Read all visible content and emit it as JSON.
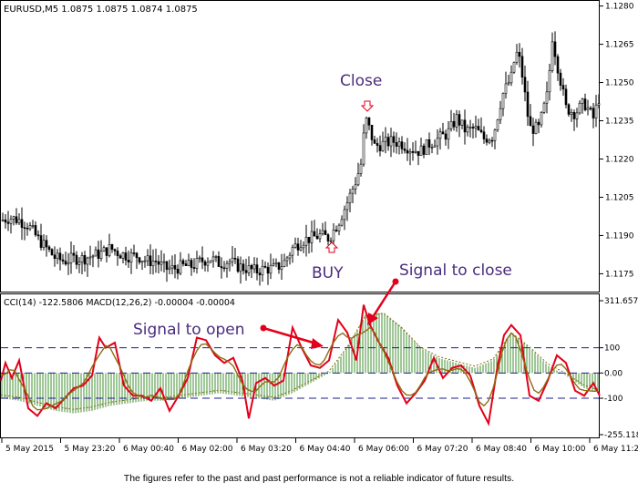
{
  "disclaimer": "The figures refer to the past and past performance is not a reliable indicator of future results.",
  "annotations": {
    "close": "Close",
    "buy": "BUY",
    "signal_open": "Signal to open",
    "signal_close": "Signal to close"
  },
  "chart_data": [
    {
      "type": "candlestick",
      "title": "EURUSD,M5  1.0875 1.0875 1.0874 1.0875",
      "y_ticks": [
        "1.1280",
        "1.1265",
        "1.1250",
        "1.1235",
        "1.1220",
        "1.1205",
        "1.1190",
        "1.1175"
      ],
      "ylim": [
        1.1168,
        1.1282
      ],
      "x_ticks": [
        "5 May 2015",
        "5 May 23:20",
        "6 May 00:40",
        "6 May 02:00",
        "6 May 03:20",
        "6 May 04:40",
        "6 May 06:00",
        "6 May 07:20",
        "6 May 08:40",
        "6 May 10:00",
        "6 May 11:20"
      ],
      "close_path": [
        [
          0,
          1.1196
        ],
        [
          10,
          1.1197
        ],
        [
          20,
          1.1196
        ],
        [
          30,
          1.1194
        ],
        [
          40,
          1.1189
        ],
        [
          50,
          1.1185
        ],
        [
          60,
          1.1181
        ],
        [
          70,
          1.118
        ],
        [
          80,
          1.1181
        ],
        [
          90,
          1.1181
        ],
        [
          100,
          1.1182
        ],
        [
          110,
          1.1183
        ],
        [
          120,
          1.1185
        ],
        [
          130,
          1.1183
        ],
        [
          140,
          1.1182
        ],
        [
          150,
          1.1182
        ],
        [
          160,
          1.118
        ],
        [
          170,
          1.118
        ],
        [
          180,
          1.1177
        ],
        [
          190,
          1.1177
        ],
        [
          200,
          1.1178
        ],
        [
          210,
          1.1178
        ],
        [
          220,
          1.118
        ],
        [
          230,
          1.1181
        ],
        [
          240,
          1.1179
        ],
        [
          250,
          1.118
        ],
        [
          260,
          1.1178
        ],
        [
          270,
          1.1177
        ],
        [
          280,
          1.1176
        ],
        [
          290,
          1.1177
        ],
        [
          300,
          1.1177
        ],
        [
          310,
          1.1179
        ],
        [
          320,
          1.1185
        ],
        [
          330,
          1.1188
        ],
        [
          340,
          1.1189
        ],
        [
          350,
          1.119
        ],
        [
          360,
          1.1189
        ],
        [
          370,
          1.1195
        ],
        [
          380,
          1.1203
        ],
        [
          390,
          1.1212
        ],
        [
          395,
          1.1218
        ],
        [
          400,
          1.1236
        ],
        [
          405,
          1.1231
        ],
        [
          410,
          1.1225
        ],
        [
          420,
          1.1226
        ],
        [
          430,
          1.1227
        ],
        [
          440,
          1.1226
        ],
        [
          450,
          1.1224
        ],
        [
          460,
          1.1223
        ],
        [
          470,
          1.1226
        ],
        [
          480,
          1.1228
        ],
        [
          490,
          1.123
        ],
        [
          500,
          1.1236
        ],
        [
          510,
          1.1231
        ],
        [
          520,
          1.1232
        ],
        [
          530,
          1.1228
        ],
        [
          540,
          1.1229
        ],
        [
          550,
          1.1245
        ],
        [
          560,
          1.1252
        ],
        [
          565,
          1.1262
        ],
        [
          570,
          1.1258
        ],
        [
          580,
          1.1232
        ],
        [
          590,
          1.1232
        ],
        [
          600,
          1.1246
        ],
        [
          605,
          1.1268
        ],
        [
          610,
          1.1258
        ],
        [
          620,
          1.124
        ],
        [
          630,
          1.1238
        ],
        [
          640,
          1.1242
        ],
        [
          650,
          1.1236
        ],
        [
          657,
          1.1245
        ]
      ]
    },
    {
      "type": "line",
      "title": "CCI(14) -122.5806  MACD(12,26,2) -0.00004 -0.00004",
      "y_ticks": [
        "311.6573",
        "100",
        "0.00",
        "-100",
        "-255.118"
      ],
      "ylim": [
        -255.118,
        311.6573
      ],
      "levels": [
        100,
        0,
        -100
      ],
      "series": [
        {
          "name": "CCI(14)",
          "values": [
            [
              0,
              -30
            ],
            [
              5,
              40
            ],
            [
              12,
              -20
            ],
            [
              20,
              50
            ],
            [
              30,
              -140
            ],
            [
              40,
              -170
            ],
            [
              50,
              -120
            ],
            [
              60,
              -140
            ],
            [
              70,
              -100
            ],
            [
              80,
              -60
            ],
            [
              90,
              -50
            ],
            [
              100,
              -10
            ],
            [
              108,
              140
            ],
            [
              115,
              100
            ],
            [
              125,
              120
            ],
            [
              135,
              -50
            ],
            [
              145,
              -90
            ],
            [
              155,
              -90
            ],
            [
              165,
              -110
            ],
            [
              175,
              -60
            ],
            [
              185,
              -150
            ],
            [
              195,
              -90
            ],
            [
              205,
              -20
            ],
            [
              215,
              140
            ],
            [
              225,
              130
            ],
            [
              235,
              70
            ],
            [
              245,
              40
            ],
            [
              255,
              60
            ],
            [
              265,
              -30
            ],
            [
              272,
              -180
            ],
            [
              280,
              -40
            ],
            [
              290,
              -20
            ],
            [
              300,
              -50
            ],
            [
              310,
              -30
            ],
            [
              320,
              180
            ],
            [
              330,
              100
            ],
            [
              340,
              30
            ],
            [
              350,
              20
            ],
            [
              360,
              50
            ],
            [
              370,
              210
            ],
            [
              380,
              160
            ],
            [
              390,
              50
            ],
            [
              398,
              270
            ],
            [
              405,
              190
            ],
            [
              415,
              120
            ],
            [
              425,
              60
            ],
            [
              435,
              -50
            ],
            [
              445,
              -120
            ],
            [
              455,
              -80
            ],
            [
              465,
              -30
            ],
            [
              475,
              60
            ],
            [
              485,
              -20
            ],
            [
              495,
              20
            ],
            [
              505,
              30
            ],
            [
              515,
              -10
            ],
            [
              525,
              -130
            ],
            [
              535,
              -200
            ],
            [
              545,
              30
            ],
            [
              552,
              150
            ],
            [
              560,
              190
            ],
            [
              570,
              150
            ],
            [
              580,
              -90
            ],
            [
              590,
              -110
            ],
            [
              600,
              -30
            ],
            [
              610,
              70
            ],
            [
              620,
              40
            ],
            [
              630,
              -70
            ],
            [
              640,
              -90
            ],
            [
              650,
              -40
            ],
            [
              657,
              -90
            ]
          ]
        },
        {
          "name": "MACD(12,26,2)",
          "values": [
            [
              0,
              -100
            ],
            [
              20,
              -110
            ],
            [
              40,
              -130
            ],
            [
              60,
              -150
            ],
            [
              80,
              -160
            ],
            [
              100,
              -150
            ],
            [
              120,
              -130
            ],
            [
              140,
              -120
            ],
            [
              160,
              -110
            ],
            [
              180,
              -110
            ],
            [
              200,
              -100
            ],
            [
              220,
              -90
            ],
            [
              240,
              -80
            ],
            [
              260,
              -90
            ],
            [
              280,
              -100
            ],
            [
              300,
              -110
            ],
            [
              320,
              -80
            ],
            [
              340,
              -40
            ],
            [
              360,
              0
            ],
            [
              380,
              100
            ],
            [
              400,
              230
            ],
            [
              420,
              240
            ],
            [
              440,
              180
            ],
            [
              460,
              100
            ],
            [
              480,
              60
            ],
            [
              500,
              40
            ],
            [
              520,
              20
            ],
            [
              540,
              50
            ],
            [
              560,
              160
            ],
            [
              580,
              100
            ],
            [
              600,
              30
            ],
            [
              620,
              -10
            ],
            [
              640,
              -60
            ],
            [
              657,
              -80
            ]
          ]
        }
      ],
      "x_ticks": [
        "5 May 2015",
        "5 May 23:20",
        "6 May 00:40",
        "6 May 02:00",
        "6 May 03:20",
        "6 May 04:40",
        "6 May 06:00",
        "6 May 07:20",
        "6 May 08:40",
        "6 May 10:00",
        "6 May 11:20"
      ]
    }
  ],
  "colors": {
    "cci": "#e3001b",
    "macd_hist": "#3f8f2f",
    "macd_signal": "#8b6d12",
    "level_line": "#1d1d8f",
    "annotation_text": "#4a2c7d",
    "arrow": "#e3001b"
  }
}
